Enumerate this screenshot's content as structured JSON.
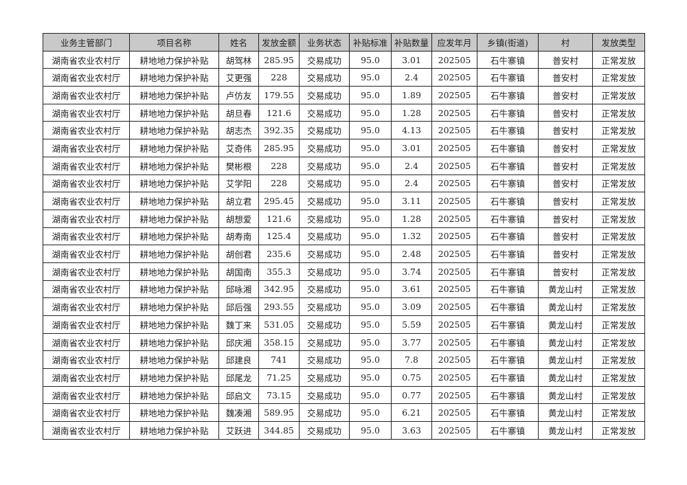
{
  "table": {
    "headers": [
      "业务主管部门",
      "项目名称",
      "姓名",
      "发放金额",
      "业务状态",
      "补贴标准",
      "补贴数量",
      "应发年月",
      "乡镇(街道)",
      "村",
      "发放类型"
    ],
    "rows": [
      [
        "湖南省农业农村厅",
        "耕地地力保护补贴",
        "胡驾林",
        "285.95",
        "交易成功",
        "95.0",
        "3.01",
        "202505",
        "石牛寨镇",
        "普安村",
        "正常发放"
      ],
      [
        "湖南省农业农村厅",
        "耕地地力保护补贴",
        "艾更强",
        "228",
        "交易成功",
        "95.0",
        "2.4",
        "202505",
        "石牛寨镇",
        "普安村",
        "正常发放"
      ],
      [
        "湖南省农业农村厅",
        "耕地地力保护补贴",
        "卢仿友",
        "179.55",
        "交易成功",
        "95.0",
        "1.89",
        "202505",
        "石牛寨镇",
        "普安村",
        "正常发放"
      ],
      [
        "湖南省农业农村厅",
        "耕地地力保护补贴",
        "胡旦春",
        "121.6",
        "交易成功",
        "95.0",
        "1.28",
        "202505",
        "石牛寨镇",
        "普安村",
        "正常发放"
      ],
      [
        "湖南省农业农村厅",
        "耕地地力保护补贴",
        "胡志杰",
        "392.35",
        "交易成功",
        "95.0",
        "4.13",
        "202505",
        "石牛寨镇",
        "普安村",
        "正常发放"
      ],
      [
        "湖南省农业农村厅",
        "耕地地力保护补贴",
        "艾奇伟",
        "285.95",
        "交易成功",
        "95.0",
        "3.01",
        "202505",
        "石牛寨镇",
        "普安村",
        "正常发放"
      ],
      [
        "湖南省农业农村厅",
        "耕地地力保护补贴",
        "樊彬根",
        "228",
        "交易成功",
        "95.0",
        "2.4",
        "202505",
        "石牛寨镇",
        "普安村",
        "正常发放"
      ],
      [
        "湖南省农业农村厅",
        "耕地地力保护补贴",
        "艾学阳",
        "228",
        "交易成功",
        "95.0",
        "2.4",
        "202505",
        "石牛寨镇",
        "普安村",
        "正常发放"
      ],
      [
        "湖南省农业农村厅",
        "耕地地力保护补贴",
        "胡立君",
        "295.45",
        "交易成功",
        "95.0",
        "3.11",
        "202505",
        "石牛寨镇",
        "普安村",
        "正常发放"
      ],
      [
        "湖南省农业农村厅",
        "耕地地力保护补贴",
        "胡想爱",
        "121.6",
        "交易成功",
        "95.0",
        "1.28",
        "202505",
        "石牛寨镇",
        "普安村",
        "正常发放"
      ],
      [
        "湖南省农业农村厅",
        "耕地地力保护补贴",
        "胡寿南",
        "125.4",
        "交易成功",
        "95.0",
        "1.32",
        "202505",
        "石牛寨镇",
        "普安村",
        "正常发放"
      ],
      [
        "湖南省农业农村厅",
        "耕地地力保护补贴",
        "胡创君",
        "235.6",
        "交易成功",
        "95.0",
        "2.48",
        "202505",
        "石牛寨镇",
        "普安村",
        "正常发放"
      ],
      [
        "湖南省农业农村厅",
        "耕地地力保护补贴",
        "胡国南",
        "355.3",
        "交易成功",
        "95.0",
        "3.74",
        "202505",
        "石牛寨镇",
        "普安村",
        "正常发放"
      ],
      [
        "湖南省农业农村厅",
        "耕地地力保护补贴",
        "邱咏湘",
        "342.95",
        "交易成功",
        "95.0",
        "3.61",
        "202505",
        "石牛寨镇",
        "黄龙山村",
        "正常发放"
      ],
      [
        "湖南省农业农村厅",
        "耕地地力保护补贴",
        "邱后强",
        "293.55",
        "交易成功",
        "95.0",
        "3.09",
        "202505",
        "石牛寨镇",
        "黄龙山村",
        "正常发放"
      ],
      [
        "湖南省农业农村厅",
        "耕地地力保护补贴",
        "魏丁来",
        "531.05",
        "交易成功",
        "95.0",
        "5.59",
        "202505",
        "石牛寨镇",
        "黄龙山村",
        "正常发放"
      ],
      [
        "湖南省农业农村厅",
        "耕地地力保护补贴",
        "邱庆湘",
        "358.15",
        "交易成功",
        "95.0",
        "3.77",
        "202505",
        "石牛寨镇",
        "黄龙山村",
        "正常发放"
      ],
      [
        "湖南省农业农村厅",
        "耕地地力保护补贴",
        "邱建良",
        "741",
        "交易成功",
        "95.0",
        "7.8",
        "202505",
        "石牛寨镇",
        "黄龙山村",
        "正常发放"
      ],
      [
        "湖南省农业农村厅",
        "耕地地力保护补贴",
        "邱尾龙",
        "71.25",
        "交易成功",
        "95.0",
        "0.75",
        "202505",
        "石牛寨镇",
        "黄龙山村",
        "正常发放"
      ],
      [
        "湖南省农业农村厅",
        "耕地地力保护补贴",
        "邱启文",
        "73.15",
        "交易成功",
        "95.0",
        "0.77",
        "202505",
        "石牛寨镇",
        "黄龙山村",
        "正常发放"
      ],
      [
        "湖南省农业农村厅",
        "耕地地力保护补贴",
        "魏凑湘",
        "589.95",
        "交易成功",
        "95.0",
        "6.21",
        "202505",
        "石牛寨镇",
        "黄龙山村",
        "正常发放"
      ],
      [
        "湖南省农业农村厅",
        "耕地地力保护补贴",
        "艾跃进",
        "344.85",
        "交易成功",
        "95.0",
        "3.63",
        "202505",
        "石牛寨镇",
        "黄龙山村",
        "正常发放"
      ]
    ]
  }
}
